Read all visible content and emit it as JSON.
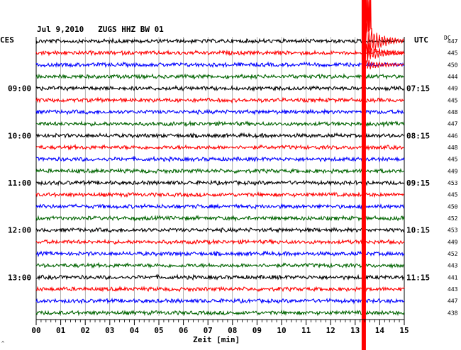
{
  "header": {
    "title": "Jul 9,2010   ZUGS HHZ BW 01",
    "left_tz": "CES",
    "right_tz": "UTC",
    "dc_label": "DC"
  },
  "colors": {
    "trace_cycle": [
      "#000000",
      "#ff0000",
      "#0000ff",
      "#006400"
    ],
    "event": "#ff0000",
    "grid": "#000000"
  },
  "footer": {
    "xlabel": "Zeit [min]",
    "corner_mark": "^"
  },
  "chart_data": {
    "type": "line",
    "title": "Jul 9,2010   ZUGS HHZ BW 01",
    "xlabel": "Zeit [min]",
    "xlim": [
      0,
      15
    ],
    "x_ticks": [
      "00",
      "01",
      "02",
      "03",
      "04",
      "05",
      "06",
      "07",
      "08",
      "09",
      "10",
      "11",
      "12",
      "13",
      "14",
      "15"
    ],
    "minor_ticks_per_min": 5,
    "rows": 24,
    "left_time_labels": [
      {
        "row": 4,
        "text": "09:00"
      },
      {
        "row": 8,
        "text": "10:00"
      },
      {
        "row": 12,
        "text": "11:00"
      },
      {
        "row": 16,
        "text": "12:00"
      },
      {
        "row": 20,
        "text": "13:00"
      }
    ],
    "right_time_labels": [
      {
        "row": 4,
        "text": "07:15"
      },
      {
        "row": 8,
        "text": "08:15"
      },
      {
        "row": 12,
        "text": "09:15"
      },
      {
        "row": 16,
        "text": "10:15"
      },
      {
        "row": 20,
        "text": "11:15"
      }
    ],
    "dc_values": [
      447,
      445,
      450,
      444,
      449,
      445,
      448,
      447,
      446,
      448,
      445,
      449,
      453,
      445,
      450,
      452,
      453,
      449,
      452,
      443,
      441,
      443,
      447,
      438
    ],
    "event": {
      "start_row": 0,
      "start_minute": 13.3,
      "vertical_minute": 13.35,
      "decay_minutes": 1.7
    },
    "grid": true
  }
}
